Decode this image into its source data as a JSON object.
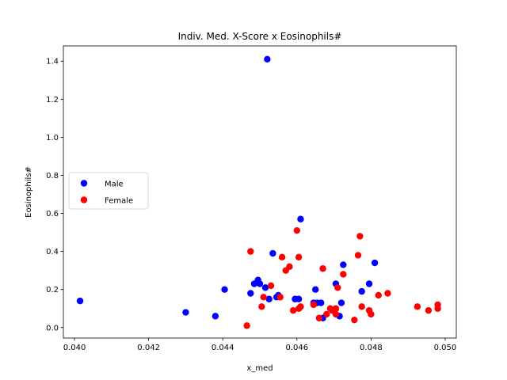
{
  "chart_data": {
    "type": "scatter",
    "title": "Indiv. Med. X-Score x Eosinophils#",
    "xlabel": "x_med",
    "ylabel": "Eosinophils#",
    "xlim": [
      0.0397,
      0.0503
    ],
    "ylim": [
      -0.055,
      1.48
    ],
    "xticks": [
      0.04,
      0.042,
      0.044,
      0.046,
      0.048,
      0.05
    ],
    "xtick_labels": [
      "0.040",
      "0.042",
      "0.044",
      "0.046",
      "0.048",
      "0.050"
    ],
    "yticks": [
      0.0,
      0.2,
      0.4,
      0.6,
      0.8,
      1.0,
      1.2,
      1.4
    ],
    "ytick_labels": [
      "0.0",
      "0.2",
      "0.4",
      "0.6",
      "0.8",
      "1.0",
      "1.2",
      "1.4"
    ],
    "grid": false,
    "legend": "center-left",
    "series": [
      {
        "name": "Male",
        "color": "#0000ff",
        "points": [
          [
            0.04015,
            0.14
          ],
          [
            0.043,
            0.08
          ],
          [
            0.0438,
            0.06
          ],
          [
            0.04405,
            0.2
          ],
          [
            0.04475,
            0.18
          ],
          [
            0.04485,
            0.23
          ],
          [
            0.04495,
            0.25
          ],
          [
            0.045,
            0.23
          ],
          [
            0.04515,
            0.21
          ],
          [
            0.0452,
            1.41
          ],
          [
            0.04525,
            0.15
          ],
          [
            0.04535,
            0.39
          ],
          [
            0.04545,
            0.16
          ],
          [
            0.0455,
            0.17
          ],
          [
            0.04595,
            0.15
          ],
          [
            0.04605,
            0.15
          ],
          [
            0.0461,
            0.57
          ],
          [
            0.04645,
            0.13
          ],
          [
            0.0465,
            0.2
          ],
          [
            0.04655,
            0.13
          ],
          [
            0.04665,
            0.13
          ],
          [
            0.0467,
            0.05
          ],
          [
            0.04705,
            0.23
          ],
          [
            0.04715,
            0.06
          ],
          [
            0.0472,
            0.13
          ],
          [
            0.04725,
            0.33
          ],
          [
            0.04775,
            0.19
          ],
          [
            0.04795,
            0.23
          ],
          [
            0.0481,
            0.34
          ]
        ]
      },
      {
        "name": "Female",
        "color": "#ff0000",
        "points": [
          [
            0.04465,
            0.01
          ],
          [
            0.04475,
            0.4
          ],
          [
            0.04505,
            0.11
          ],
          [
            0.0451,
            0.16
          ],
          [
            0.0453,
            0.22
          ],
          [
            0.04555,
            0.16
          ],
          [
            0.0456,
            0.37
          ],
          [
            0.0457,
            0.3
          ],
          [
            0.0458,
            0.32
          ],
          [
            0.0459,
            0.09
          ],
          [
            0.046,
            0.51
          ],
          [
            0.04605,
            0.1
          ],
          [
            0.04605,
            0.37
          ],
          [
            0.0461,
            0.11
          ],
          [
            0.04645,
            0.12
          ],
          [
            0.0466,
            0.05
          ],
          [
            0.0467,
            0.31
          ],
          [
            0.0468,
            0.07
          ],
          [
            0.0469,
            0.1
          ],
          [
            0.04695,
            0.09
          ],
          [
            0.04705,
            0.1
          ],
          [
            0.04705,
            0.07
          ],
          [
            0.0471,
            0.21
          ],
          [
            0.04725,
            0.28
          ],
          [
            0.04755,
            0.04
          ],
          [
            0.04765,
            0.38
          ],
          [
            0.0477,
            0.48
          ],
          [
            0.04775,
            0.11
          ],
          [
            0.04795,
            0.09
          ],
          [
            0.048,
            0.07
          ],
          [
            0.0482,
            0.17
          ],
          [
            0.04845,
            0.18
          ],
          [
            0.04925,
            0.11
          ],
          [
            0.04955,
            0.09
          ],
          [
            0.0498,
            0.12
          ],
          [
            0.0498,
            0.1
          ]
        ]
      }
    ]
  }
}
